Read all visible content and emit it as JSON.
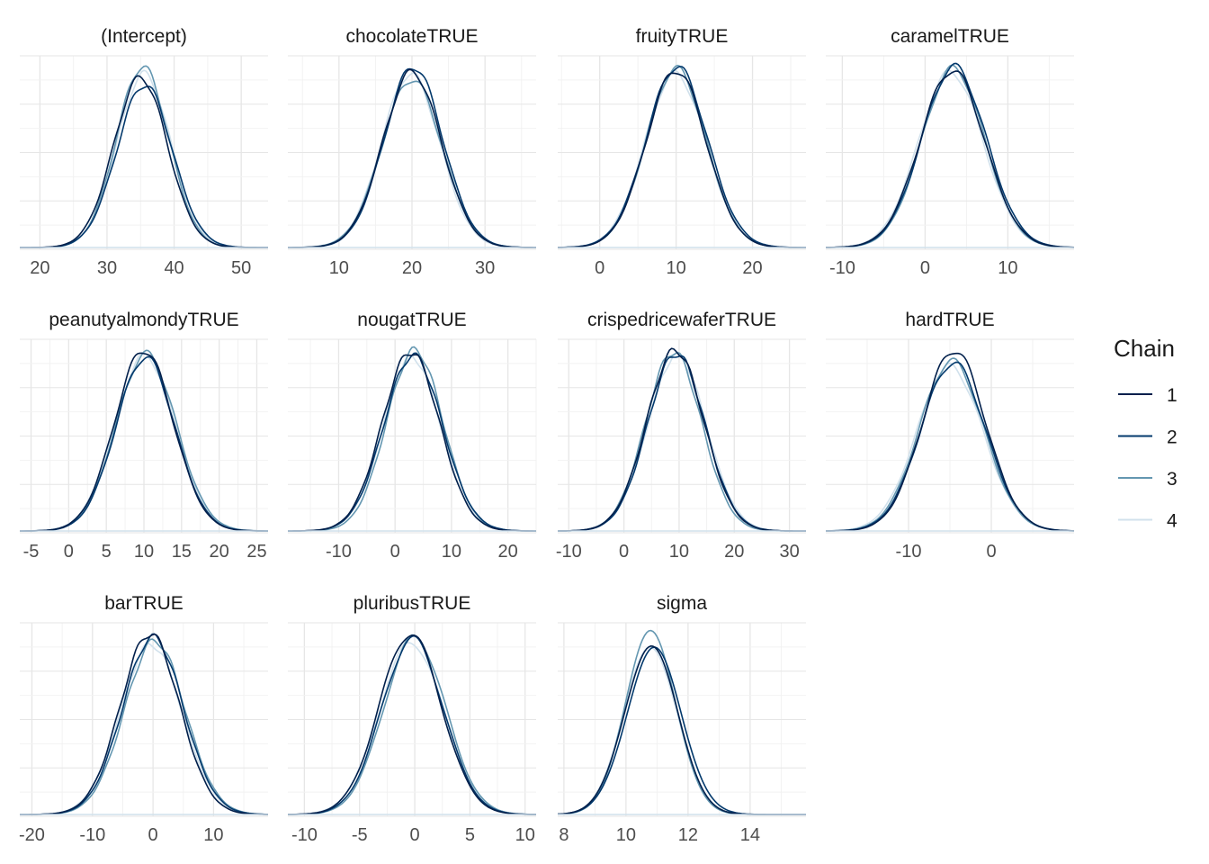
{
  "chart_data": {
    "type": "line",
    "panels": [
      {
        "title": "(Intercept)",
        "xlim": [
          17,
          54
        ],
        "xticks": [
          20,
          30,
          40,
          50
        ],
        "tick_labels": [
          "20",
          "30",
          "40",
          "50"
        ],
        "series": [
          {
            "name": "1",
            "mean": 35.0,
            "sd": 4.0,
            "peak": 0.94
          },
          {
            "name": "2",
            "mean": 35.6,
            "sd": 4.1,
            "peak": 0.9
          },
          {
            "name": "3",
            "mean": 35.3,
            "sd": 3.9,
            "peak": 1.0
          },
          {
            "name": "4",
            "mean": 35.5,
            "sd": 4.0,
            "peak": 0.96
          }
        ]
      },
      {
        "title": "chocolateTRUE",
        "xlim": [
          3,
          37
        ],
        "xticks": [
          10,
          20,
          30
        ],
        "tick_labels": [
          "10",
          "20",
          "30"
        ],
        "series": [
          {
            "name": "1",
            "mean": 20.0,
            "sd": 4.0,
            "peak": 0.97
          },
          {
            "name": "2",
            "mean": 20.2,
            "sd": 4.0,
            "peak": 1.0
          },
          {
            "name": "3",
            "mean": 20.0,
            "sd": 4.1,
            "peak": 0.93
          },
          {
            "name": "4",
            "mean": 19.8,
            "sd": 4.0,
            "peak": 0.96
          }
        ]
      },
      {
        "title": "fruityTRUE",
        "xlim": [
          -5.5,
          27
        ],
        "xticks": [
          0,
          10,
          20
        ],
        "tick_labels": [
          "0",
          "10",
          "20"
        ],
        "series": [
          {
            "name": "1",
            "mean": 10.0,
            "sd": 3.9,
            "peak": 0.98
          },
          {
            "name": "2",
            "mean": 10.1,
            "sd": 4.0,
            "peak": 1.0
          },
          {
            "name": "3",
            "mean": 10.0,
            "sd": 3.9,
            "peak": 0.99
          },
          {
            "name": "4",
            "mean": 9.9,
            "sd": 4.0,
            "peak": 0.96
          }
        ]
      },
      {
        "title": "caramelTRUE",
        "xlim": [
          -12,
          18
        ],
        "xticks": [
          -10,
          0,
          10
        ],
        "tick_labels": [
          "-10",
          "0",
          "10"
        ],
        "series": [
          {
            "name": "1",
            "mean": 3.3,
            "sd": 3.9,
            "peak": 0.98
          },
          {
            "name": "2",
            "mean": 3.5,
            "sd": 3.9,
            "peak": 1.0
          },
          {
            "name": "3",
            "mean": 3.4,
            "sd": 3.8,
            "peak": 0.99
          },
          {
            "name": "4",
            "mean": 3.1,
            "sd": 3.9,
            "peak": 0.97
          }
        ]
      },
      {
        "title": "peanutyalmondyTRUE",
        "xlim": [
          -6.5,
          26.5
        ],
        "xticks": [
          -5,
          0,
          5,
          10,
          15,
          20,
          25
        ],
        "tick_labels": [
          "-5",
          "0",
          "5",
          "10",
          "15",
          "20",
          "25"
        ],
        "series": [
          {
            "name": "1",
            "mean": 10.0,
            "sd": 3.9,
            "peak": 1.0
          },
          {
            "name": "2",
            "mean": 10.2,
            "sd": 3.9,
            "peak": 0.96
          },
          {
            "name": "3",
            "mean": 10.3,
            "sd": 4.0,
            "peak": 0.98
          },
          {
            "name": "4",
            "mean": 10.1,
            "sd": 4.0,
            "peak": 0.97
          }
        ]
      },
      {
        "title": "nougatTRUE",
        "xlim": [
          -19,
          25
        ],
        "xticks": [
          -10,
          0,
          10,
          20
        ],
        "tick_labels": [
          "-10",
          "0",
          "10",
          "20"
        ],
        "series": [
          {
            "name": "1",
            "mean": 2.8,
            "sd": 5.1,
            "peak": 0.99
          },
          {
            "name": "2",
            "mean": 3.2,
            "sd": 5.2,
            "peak": 0.97
          },
          {
            "name": "3",
            "mean": 3.5,
            "sd": 5.0,
            "peak": 1.0
          },
          {
            "name": "4",
            "mean": 3.0,
            "sd": 5.1,
            "peak": 0.96
          }
        ]
      },
      {
        "title": "crispedricewaferTRUE",
        "xlim": [
          -12,
          33
        ],
        "xticks": [
          -10,
          0,
          10,
          20,
          30
        ],
        "tick_labels": [
          "-10",
          "0",
          "10",
          "20",
          "30"
        ],
        "series": [
          {
            "name": "1",
            "mean": 9.3,
            "sd": 5.2,
            "peak": 1.0
          },
          {
            "name": "2",
            "mean": 9.5,
            "sd": 5.2,
            "peak": 0.98
          },
          {
            "name": "3",
            "mean": 9.0,
            "sd": 5.1,
            "peak": 0.99
          },
          {
            "name": "4",
            "mean": 9.6,
            "sd": 5.3,
            "peak": 0.97
          }
        ]
      },
      {
        "title": "hardTRUE",
        "xlim": [
          -20,
          10
        ],
        "xticks": [
          -10,
          0
        ],
        "tick_labels": [
          "-10",
          "0"
        ],
        "series": [
          {
            "name": "1",
            "mean": -4.5,
            "sd": 3.8,
            "peak": 1.0
          },
          {
            "name": "2",
            "mean": -4.6,
            "sd": 3.9,
            "peak": 0.93
          },
          {
            "name": "3",
            "mean": -4.8,
            "sd": 3.9,
            "peak": 0.94
          },
          {
            "name": "4",
            "mean": -5.0,
            "sd": 4.0,
            "peak": 0.91
          }
        ]
      },
      {
        "title": "barTRUE",
        "xlim": [
          -22,
          19
        ],
        "xticks": [
          -20,
          -10,
          0,
          10
        ],
        "tick_labels": [
          "-20",
          "-10",
          "0",
          "10"
        ],
        "series": [
          {
            "name": "1",
            "mean": -0.5,
            "sd": 4.9,
            "peak": 1.0
          },
          {
            "name": "2",
            "mean": 0.0,
            "sd": 5.0,
            "peak": 0.98
          },
          {
            "name": "3",
            "mean": 0.3,
            "sd": 5.0,
            "peak": 0.96
          },
          {
            "name": "4",
            "mean": -0.3,
            "sd": 5.1,
            "peak": 0.94
          }
        ]
      },
      {
        "title": "pluribusTRUE",
        "xlim": [
          -11.5,
          11
        ],
        "xticks": [
          -10,
          -5,
          0,
          5,
          10
        ],
        "tick_labels": [
          "-10",
          "-5",
          "0",
          "5",
          "10"
        ],
        "series": [
          {
            "name": "1",
            "mean": -0.4,
            "sd": 2.8,
            "peak": 1.0
          },
          {
            "name": "2",
            "mean": -0.2,
            "sd": 2.8,
            "peak": 0.97
          },
          {
            "name": "3",
            "mean": 0.0,
            "sd": 2.8,
            "peak": 0.98
          },
          {
            "name": "4",
            "mean": -0.3,
            "sd": 2.9,
            "peak": 0.95
          }
        ]
      },
      {
        "title": "sigma",
        "xlim": [
          7.8,
          15.8
        ],
        "xticks": [
          8,
          10,
          12,
          14
        ],
        "tick_labels": [
          "8",
          "10",
          "12",
          "14"
        ],
        "series": [
          {
            "name": "1",
            "mean": 10.8,
            "sd": 0.85,
            "peak": 0.94
          },
          {
            "name": "2",
            "mean": 10.9,
            "sd": 0.88,
            "peak": 0.91
          },
          {
            "name": "3",
            "mean": 10.8,
            "sd": 0.82,
            "peak": 1.0
          },
          {
            "name": "4",
            "mean": 10.8,
            "sd": 0.86,
            "peak": 0.93
          }
        ]
      }
    ],
    "legend": {
      "title": "Chain",
      "position": "right",
      "items": [
        {
          "label": "1",
          "color": "#011f4b"
        },
        {
          "label": "2",
          "color": "#03396c"
        },
        {
          "label": "3",
          "color": "#6497b1"
        },
        {
          "label": "4",
          "color": "#d1e1ec"
        }
      ]
    },
    "grid": true
  }
}
